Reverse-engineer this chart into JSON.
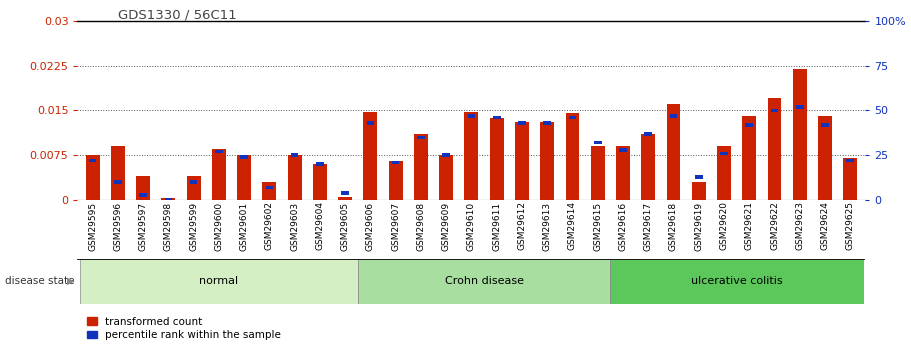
{
  "title": "GDS1330 / 56C11",
  "samples": [
    "GSM29595",
    "GSM29596",
    "GSM29597",
    "GSM29598",
    "GSM29599",
    "GSM29600",
    "GSM29601",
    "GSM29602",
    "GSM29603",
    "GSM29604",
    "GSM29605",
    "GSM29606",
    "GSM29607",
    "GSM29608",
    "GSM29609",
    "GSM29610",
    "GSM29611",
    "GSM29612",
    "GSM29613",
    "GSM29614",
    "GSM29615",
    "GSM29616",
    "GSM29617",
    "GSM29618",
    "GSM29619",
    "GSM29620",
    "GSM29621",
    "GSM29622",
    "GSM29623",
    "GSM29624",
    "GSM29625"
  ],
  "transformed_count": [
    0.0075,
    0.009,
    0.004,
    0.0003,
    0.004,
    0.0085,
    0.0075,
    0.003,
    0.0075,
    0.006,
    0.0005,
    0.0148,
    0.0065,
    0.011,
    0.0075,
    0.0148,
    0.0138,
    0.013,
    0.013,
    0.0145,
    0.009,
    0.009,
    0.011,
    0.016,
    0.003,
    0.009,
    0.014,
    0.017,
    0.022,
    0.014,
    0.007
  ],
  "percentile_rank": [
    22,
    10,
    3,
    0,
    10,
    27,
    24,
    7,
    25,
    20,
    4,
    43,
    21,
    35,
    25,
    47,
    46,
    43,
    43,
    46,
    32,
    28,
    37,
    47,
    13,
    26,
    42,
    50,
    52,
    42,
    22
  ],
  "groups": [
    {
      "label": "normal",
      "start": 0,
      "end": 10,
      "color": "#d4efc4"
    },
    {
      "label": "Crohn disease",
      "start": 11,
      "end": 20,
      "color": "#a8dfa0"
    },
    {
      "label": "ulcerative colitis",
      "start": 21,
      "end": 30,
      "color": "#5cc85c"
    }
  ],
  "ylim_left": [
    0,
    0.03
  ],
  "ylim_right": [
    0,
    100
  ],
  "yticks_left": [
    0,
    0.0075,
    0.015,
    0.0225,
    0.03
  ],
  "ytick_labels_left": [
    "0",
    "0.0075",
    "0.015",
    "0.0225",
    "0.03"
  ],
  "yticks_right": [
    0,
    25,
    50,
    75,
    100
  ],
  "ytick_labels_right": [
    "0",
    "25",
    "50",
    "75",
    "100%"
  ],
  "bar_color_red": "#cc2200",
  "bar_color_blue": "#1133bb",
  "title_color": "#444444",
  "left_axis_color": "#cc2200",
  "right_axis_color": "#1133bb",
  "grid_color": "#555555",
  "bg_color": "#ffffff",
  "bar_width": 0.55,
  "blue_bar_height": 0.0006,
  "legend_label_red": "transformed count",
  "legend_label_blue": "percentile rank within the sample"
}
